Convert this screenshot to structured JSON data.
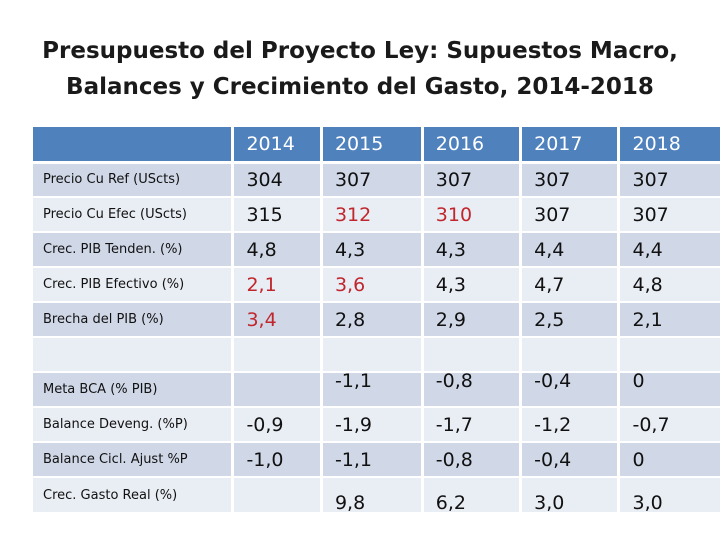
{
  "title_line1": "Presupuesto del Proyecto Ley: Supuestos Macro,",
  "title_line2": "Balances y Crecimiento del Gasto, 2014-2018",
  "table": {
    "years": [
      "2014",
      "2015",
      "2016",
      "2017",
      "2018"
    ],
    "rows": [
      {
        "label": "Precio Cu Ref (UScts)",
        "values": [
          "304",
          "307",
          "307",
          "307",
          "307"
        ]
      },
      {
        "label": "Precio Cu Efec (UScts)",
        "values": [
          "315",
          "312",
          "310",
          "307",
          "307"
        ]
      },
      {
        "label": "Crec. PIB Tenden. (%)",
        "values": [
          "4,8",
          "4,3",
          "4,3",
          "4,4",
          "4,4"
        ]
      },
      {
        "label": "Crec. PIB Efectivo (%)",
        "values": [
          "2,1",
          "3,6",
          "4,3",
          "4,7",
          "4,8"
        ]
      },
      {
        "label": "Brecha del PIB (%)",
        "values": [
          "3,4",
          "2,8",
          "2,9",
          "2,5",
          "2,1"
        ]
      },
      {
        "label": "",
        "values": [
          "",
          "",
          "",
          "",
          ""
        ]
      },
      {
        "label": "Meta BCA (% PIB)",
        "values": [
          "",
          "-1,1",
          "-0,8",
          "-0,4",
          "0"
        ]
      },
      {
        "label": "Balance Deveng. (%P)",
        "values": [
          "-0,9",
          "-1,9",
          "-1,7",
          "-1,2",
          "-0,7"
        ]
      },
      {
        "label": "Balance Cicl. Ajust %P",
        "values": [
          "-1,0",
          "-1,1",
          "-0,8",
          "-0,4",
          "0"
        ]
      },
      {
        "label": "Crec. Gasto Real (%)",
        "values": [
          "",
          "9,8",
          "6,2",
          "3,0",
          "3,0"
        ]
      }
    ]
  },
  "colors": {
    "header": "#4f81bd",
    "band_dark": "#d0d8e8",
    "band_light": "#e9edf4",
    "highlight_red": "#c0272d"
  }
}
